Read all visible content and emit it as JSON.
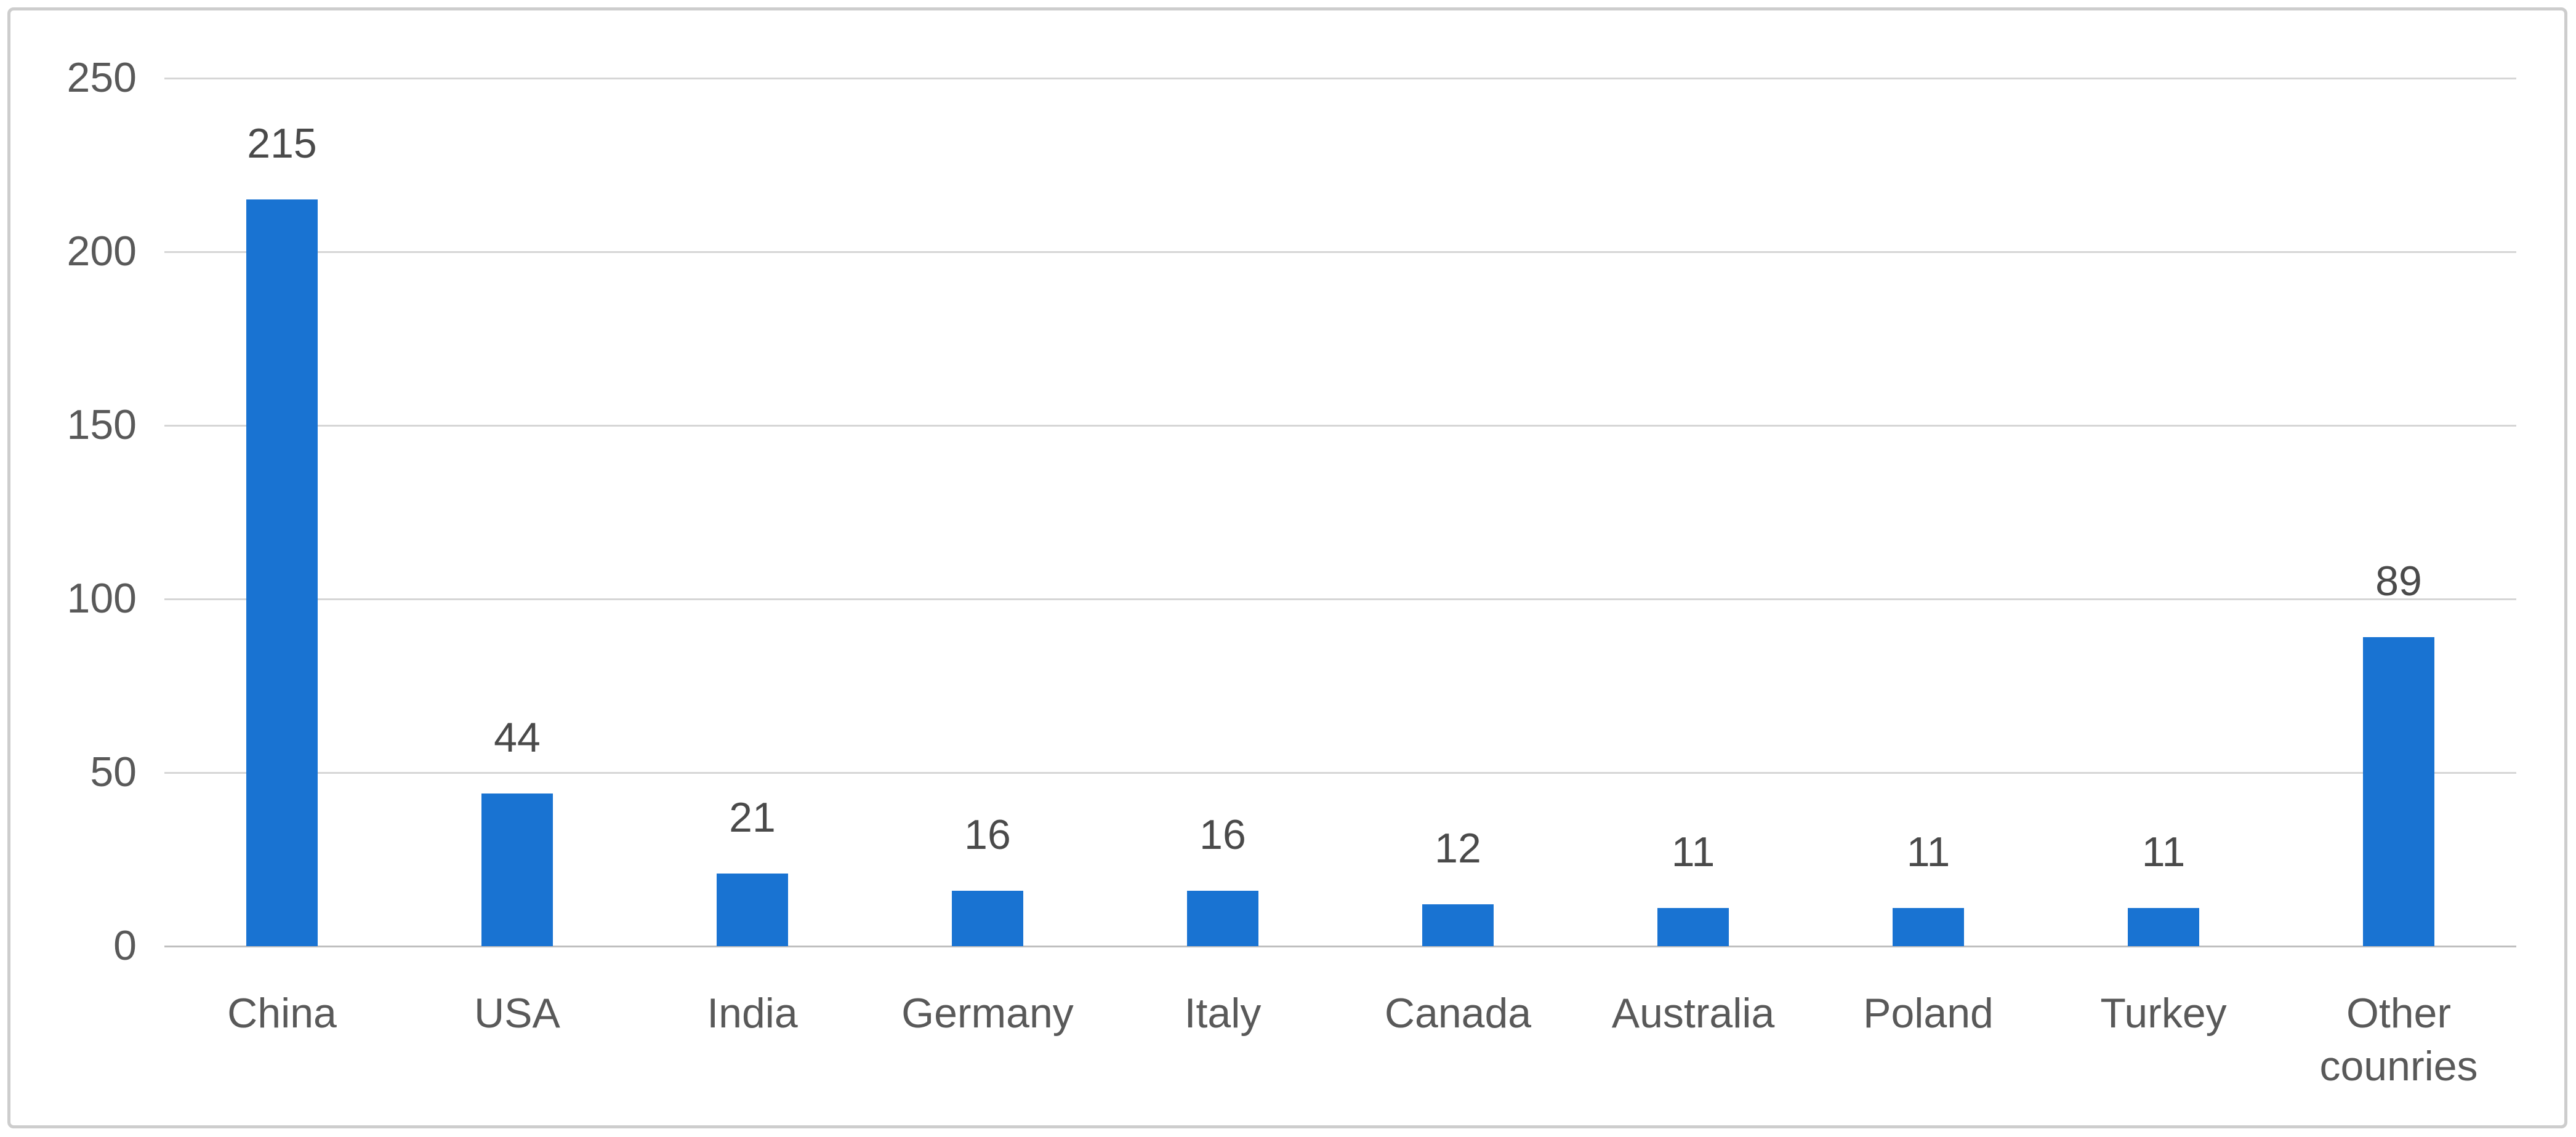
{
  "chart_data": {
    "type": "bar",
    "title": "",
    "xlabel": "",
    "ylabel": "",
    "categories": [
      "China",
      "USA",
      "India",
      "Germany",
      "Italy",
      "Canada",
      "Australia",
      "Poland",
      "Turkey",
      "Other counries"
    ],
    "values": [
      215,
      44,
      21,
      16,
      16,
      12,
      11,
      11,
      11,
      89
    ],
    "data_labels": [
      "215",
      "44",
      "21",
      "16",
      "16",
      "12",
      "11",
      "11",
      "11",
      "89"
    ],
    "yticks": [
      "0",
      "50",
      "100",
      "150",
      "200",
      "250"
    ],
    "ytick_values": [
      0,
      50,
      100,
      150,
      200,
      250
    ],
    "ylim": [
      0,
      250
    ],
    "grid": true,
    "legend": false,
    "data_labels_shown": true
  },
  "colors": {
    "bar": "#1973D2",
    "gridline": "#D6D6D6",
    "axis_line": "#BFBFBF",
    "tick_label": "#595959",
    "category_label": "#595959",
    "data_label": "#4A4A4A",
    "chart_border": "#CDCDCD",
    "background": "#FFFFFF"
  }
}
